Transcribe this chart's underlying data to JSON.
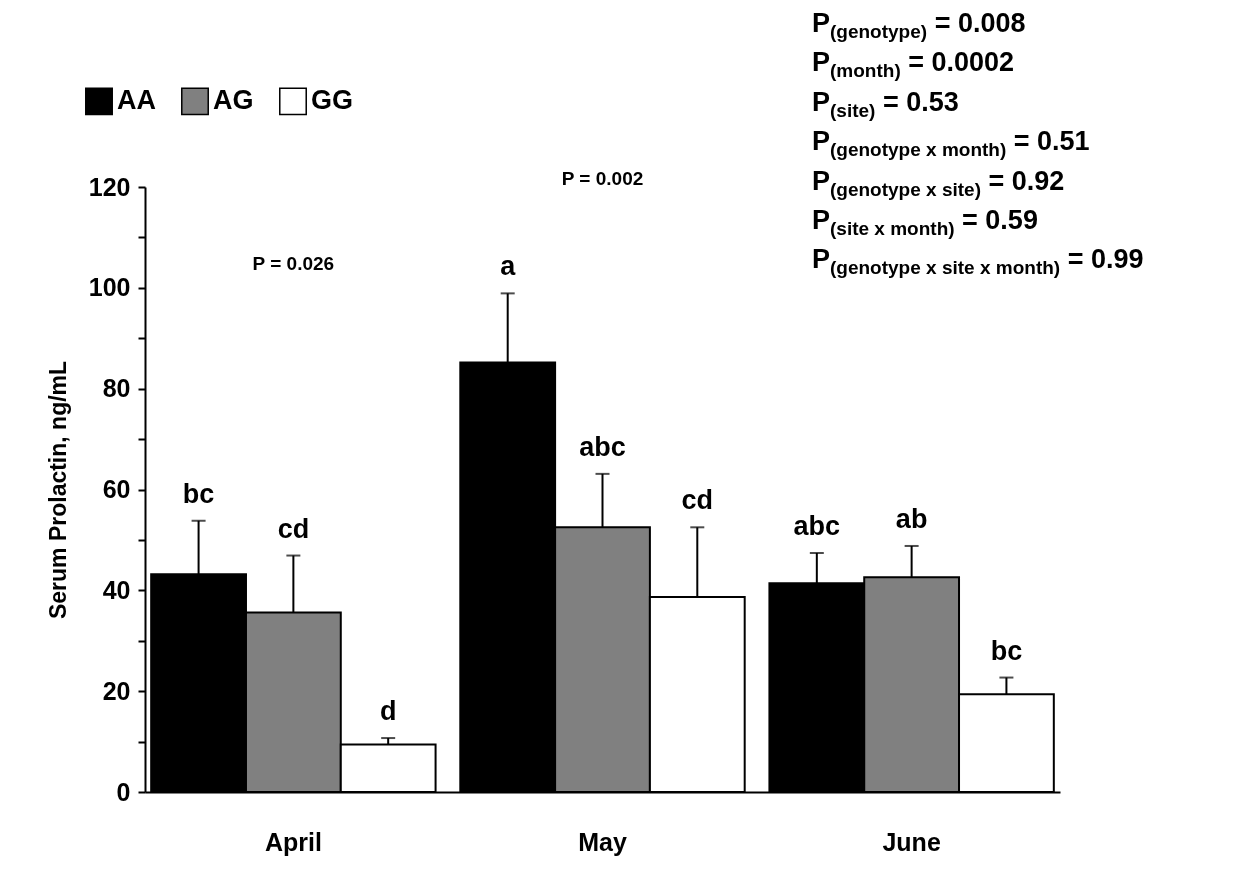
{
  "chart_data": {
    "type": "bar",
    "ylabel": "Serum Prolactin, ng/mL",
    "categories": [
      "April",
      "May",
      "June"
    ],
    "series": [
      {
        "name": "AA",
        "color": "#000000",
        "values": [
          43.2,
          85.2,
          41.4
        ],
        "errors": [
          10.6,
          13.7,
          6.0
        ],
        "value_labels": [
          "bc",
          "a",
          "abc"
        ]
      },
      {
        "name": "AG",
        "color": "#808080",
        "values": [
          35.6,
          52.5,
          42.6
        ],
        "errors": [
          11.3,
          10.6,
          6.2
        ],
        "value_labels": [
          "cd",
          "abc",
          "ab"
        ]
      },
      {
        "name": "GG",
        "color": "#ffffff",
        "values": [
          9.4,
          38.7,
          19.4
        ],
        "errors": [
          1.3,
          13.8,
          3.3
        ],
        "value_labels": [
          "d",
          "cd",
          "bc"
        ]
      }
    ],
    "ylim": [
      0,
      120
    ],
    "yticks": [
      0,
      {
        "value": 10,
        "label": null
      },
      20,
      {
        "value": 30,
        "label": null
      },
      40,
      {
        "value": 50,
        "label": null
      },
      60,
      {
        "value": 70,
        "label": null
      },
      80,
      {
        "value": 90,
        "label": null
      },
      100,
      {
        "value": 110,
        "label": null
      },
      120
    ],
    "legend": "top left",
    "grid": false,
    "annotations": [
      "P = 0.026",
      "P = 0.002",
      "P$_{(genotype)}$ = 0.008",
      "P$_{(month)}$ = 0.0002",
      "P$_{(site)}$ = 0.53",
      "P$_{(genotype x month)}$ = 0.51",
      "P$_{(genotype x site)}$ = 0.92",
      "P$_{(site x month)}$ = 0.59",
      "P$_{(genotype x site x month)}$ = 0.99"
    ]
  }
}
